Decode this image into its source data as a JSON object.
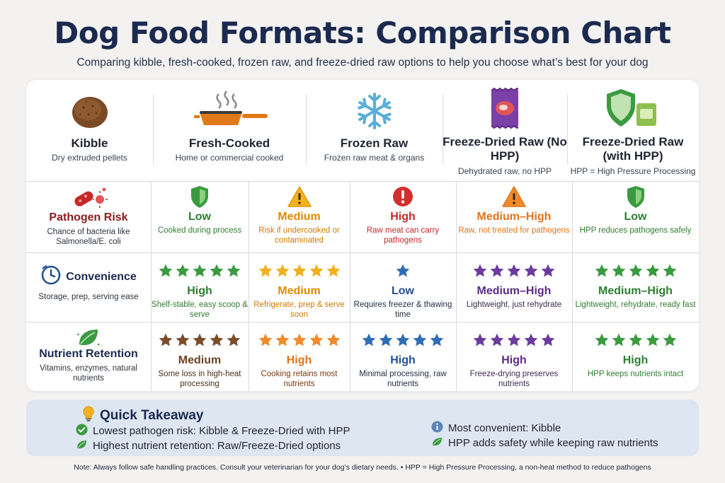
{
  "header": {
    "title": "Dog Food Formats: Comparison Chart",
    "subtitle": "Comparing kibble, fresh-cooked, frozen raw, and freeze-dried raw options to help you choose what’s best for your dog"
  },
  "formats": [
    {
      "name": "Kibble",
      "desc": "Dry extruded pellets",
      "icon": "kibble-icon"
    },
    {
      "name": "Fresh-Cooked",
      "desc": "Home or commercial cooked",
      "icon": "frying-pan-icon"
    },
    {
      "name": "Frozen Raw",
      "desc": "Frozen raw meat & organs",
      "icon": "snowflake-icon"
    },
    {
      "name": "Freeze-Dried Raw (No HPP)",
      "desc": "Dehydrated raw, no HPP",
      "icon": "meat-pack-icon"
    },
    {
      "name": "Freeze-Dried Raw (with HPP)",
      "desc": "HPP = High Pressure Processing",
      "icon": "shield-pack-icon"
    }
  ],
  "criteria": [
    {
      "title": "Pathogen Risk",
      "desc": "Chance of bacteria like Salmonella/E. coli",
      "icon": "bacteria-icon",
      "cells": [
        {
          "level": "Low",
          "note": "Cooked during process",
          "color": "#2e7d32",
          "icon": "shield-icon"
        },
        {
          "level": "Medium",
          "note": "Risk if undercooked or contaminated",
          "color": "#e08a00",
          "icon": "warning-icon"
        },
        {
          "level": "High",
          "note": "Raw meat can carry pathogens",
          "color": "#c62828",
          "icon": "alert-icon"
        },
        {
          "level": "Medium–High",
          "note": "Raw, not treated for pathogens",
          "color": "#e0741a",
          "icon": "warning-icon"
        },
        {
          "level": "Low",
          "note": "HPP reduces pathogens safely",
          "color": "#2e7d32",
          "icon": "shield-icon"
        }
      ]
    },
    {
      "title": "Convenience",
      "desc": "Storage, prep, serving ease",
      "icon": "clock-icon",
      "cells": [
        {
          "level": "High",
          "note": "Shelf-stable, easy scoop & serve",
          "color": "#2e7d32",
          "stars": 5,
          "star_color": "#3a9a3f"
        },
        {
          "level": "Medium",
          "note": "Refrigerate, prep & serve soon",
          "color": "#e08a00",
          "stars": 5,
          "star_color": "#f2b01e"
        },
        {
          "level": "Low",
          "note": "Requires freezer & thawing time",
          "color": "#1f4f8f",
          "stars": 1,
          "star_color": "#2f6db5"
        },
        {
          "level": "Medium–High",
          "note": "Lightweight, just rehydrate",
          "color": "#5b2b86",
          "stars": 5,
          "star_color": "#6a3c9c"
        },
        {
          "level": "Medium–High",
          "note": "Lightweight, rehydrate, ready fast",
          "color": "#2e7d32",
          "stars": 5,
          "star_color": "#3a9a3f"
        }
      ]
    },
    {
      "title": "Nutrient Retention",
      "desc": "Vitamins, enzymes, natural nutrients",
      "icon": "leaf-icon",
      "cells": [
        {
          "level": "Medium",
          "note": "Some loss in high-heat processing",
          "color": "#6b4423",
          "stars": 5,
          "star_color": "#7a4e2a"
        },
        {
          "level": "High",
          "note": "Cooking retains most nutrients",
          "color": "#e0741a",
          "stars": 5,
          "star_color": "#f08a2a"
        },
        {
          "level": "High",
          "note": "Minimal processing, raw nutrients",
          "color": "#1f4f8f",
          "stars": 5,
          "star_color": "#2f6db5"
        },
        {
          "level": "High",
          "note": "Freeze-drying preserves nutrients",
          "color": "#5b2b86",
          "stars": 5,
          "star_color": "#6a3c9c"
        },
        {
          "level": "High",
          "note": "HPP keeps nutrients intact",
          "color": "#2e7d32",
          "stars": 5,
          "star_color": "#3a9a3f"
        }
      ]
    }
  ],
  "takeaway": {
    "title": "Quick Takeaway",
    "items": [
      {
        "text": "Lowest pathogen risk: Kibble & Freeze-Dried with HPP",
        "icon": "check-circle-icon"
      },
      {
        "text": "Highest nutrient retention: Raw/Freeze-Dried options",
        "icon": "leaf-icon"
      },
      {
        "text": "Most convenient: Kibble",
        "icon": "info-icon"
      },
      {
        "text": "HPP adds safety while keeping raw nutrients",
        "icon": "leaf-icon"
      }
    ]
  },
  "footer": {
    "note": "Note: Always follow safe handling practices. Consult your veterinarian for your dog’s dietary needs. • HPP = High Pressure Processing, a non-heat method to reduce pathogens"
  }
}
